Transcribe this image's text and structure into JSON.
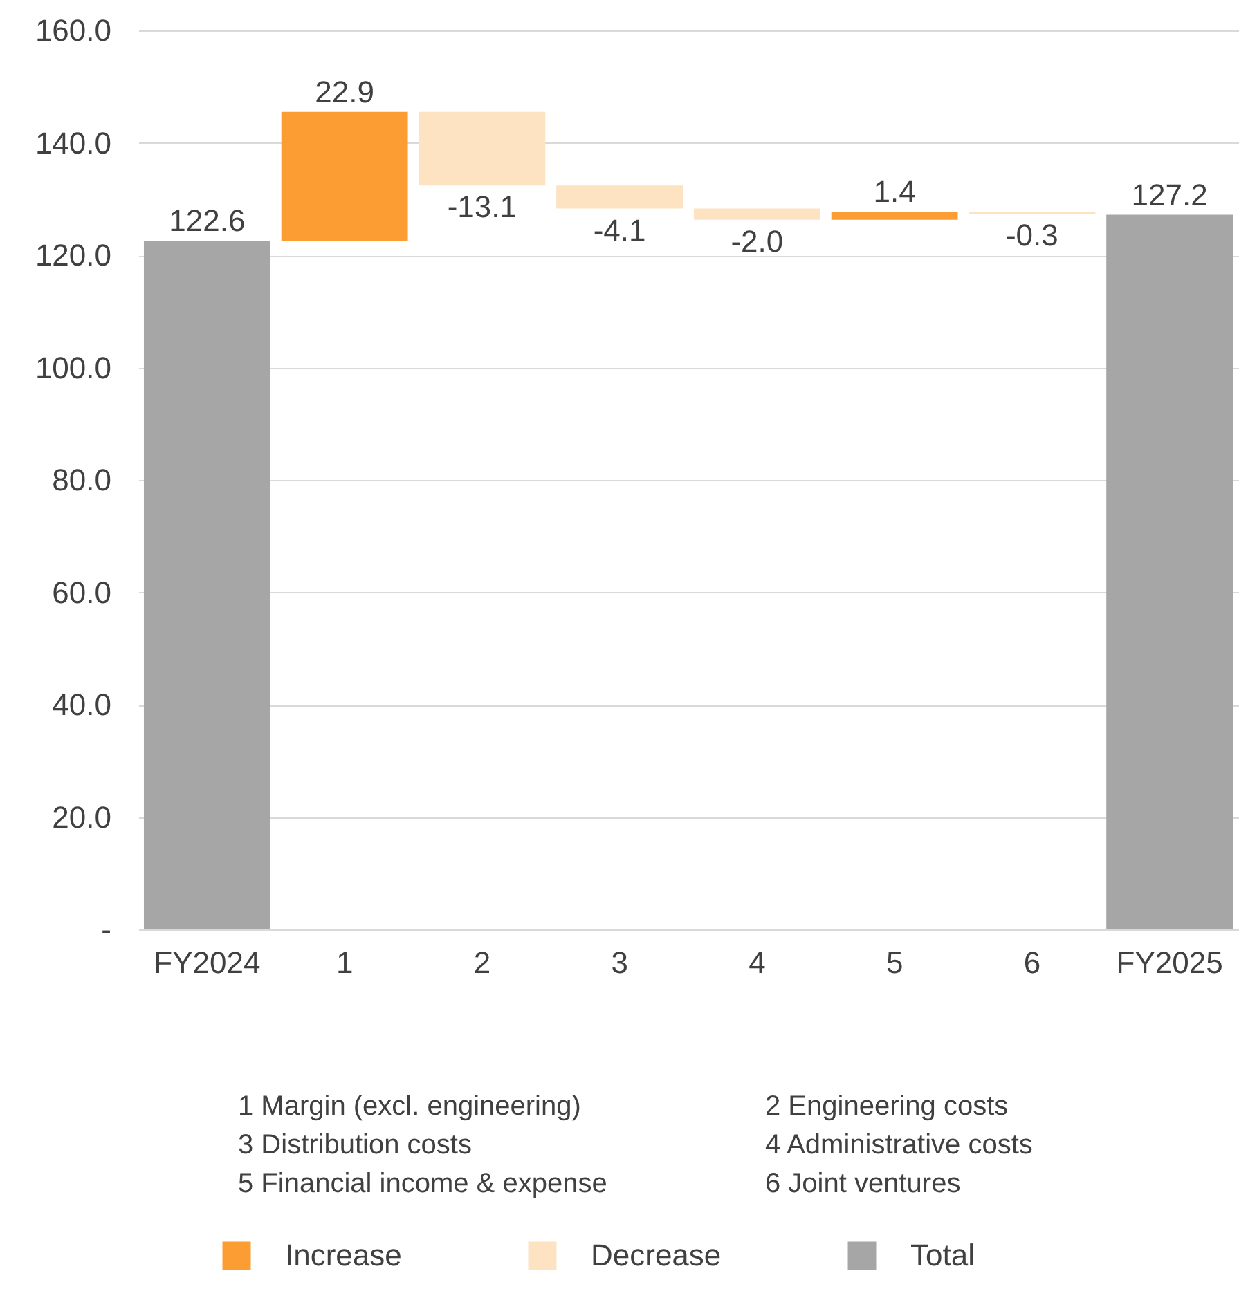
{
  "chart_data": {
    "type": "bar",
    "categories": [
      "FY2024",
      "1",
      "2",
      "3",
      "4",
      "5",
      "6",
      "FY2025"
    ],
    "series": [
      {
        "name": "Increase",
        "color": "#fb9d33",
        "values": [
          null,
          22.9,
          null,
          null,
          null,
          1.4,
          null,
          null
        ],
        "value_labels": [
          null,
          "22.9",
          null,
          null,
          null,
          "1.4",
          null,
          null
        ],
        "base": [
          null,
          122.6,
          null,
          null,
          null,
          126.3,
          null,
          null
        ]
      },
      {
        "name": "Decrease",
        "color": "#fde3c2",
        "values": [
          null,
          null,
          -13.1,
          -4.1,
          -2.0,
          null,
          -0.3,
          null
        ],
        "value_labels": [
          null,
          null,
          "-13.1",
          "-4.1",
          "-2.0",
          null,
          "-0.3",
          null
        ],
        "base": [
          null,
          null,
          145.5,
          132.4,
          128.3,
          null,
          127.7,
          null
        ]
      },
      {
        "name": "Total",
        "color": "#a6a6a6",
        "values": [
          122.6,
          null,
          null,
          null,
          null,
          null,
          null,
          127.2
        ],
        "value_labels": [
          "122.6",
          null,
          null,
          null,
          null,
          null,
          null,
          "127.2"
        ]
      }
    ],
    "ylim": [
      0,
      160
    ],
    "yticks": [
      {
        "value": 0,
        "label": "-"
      },
      {
        "value": 20,
        "label": "20.0"
      },
      {
        "value": 40,
        "label": "40.0"
      },
      {
        "value": 60,
        "label": "60.0"
      },
      {
        "value": 80,
        "label": "80.0"
      },
      {
        "value": 100,
        "label": "100.0"
      },
      {
        "value": 120,
        "label": "120.0"
      },
      {
        "value": 140,
        "label": "140.0"
      },
      {
        "value": 160,
        "label": "160.0"
      }
    ],
    "grid": "y",
    "legend": "bottom",
    "annotations": [
      "1 Margin (excl. engineering)",
      "2 Engineering costs",
      "3 Distribution costs",
      "4 Administrative costs",
      "5 Financial income & expense",
      "6 Joint ventures"
    ]
  }
}
